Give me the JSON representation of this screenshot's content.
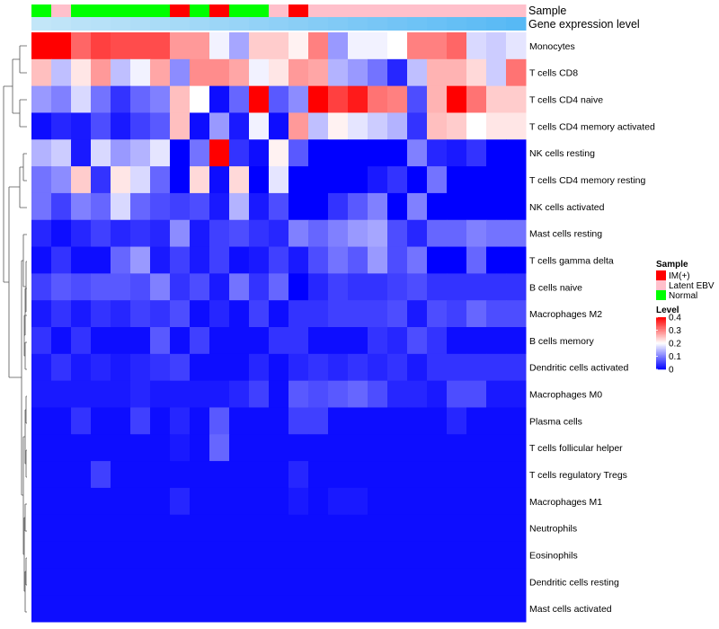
{
  "chart_data": {
    "type": "heatmap",
    "title": "",
    "annotation_labels": [
      "Sample",
      "Gene expression level"
    ],
    "rows": [
      "Monocytes",
      "T cells CD8",
      "T cells CD4 naive",
      "T cells CD4 memory activated",
      "NK cells resting",
      "T cells CD4 memory resting",
      "NK cells activated",
      "Mast cells resting",
      "T cells gamma delta",
      "B cells naive",
      "Macrophages M2",
      "B cells memory",
      "Dendritic cells activated",
      "Macrophages M0",
      "Plasma cells",
      "T cells follicular helper",
      "T cells regulatory  Tregs",
      "Macrophages M1",
      "Neutrophils",
      "Eosinophils",
      "Dendritic cells resting",
      "Mast cells activated"
    ],
    "sample_groups": [
      "Normal",
      "Latent EBV",
      "Normal",
      "Normal",
      "Normal",
      "Normal",
      "Normal",
      "IM(+)",
      "Normal",
      "IM(+)",
      "Normal",
      "Normal",
      "Latent EBV",
      "IM(+)",
      "Latent EBV",
      "Latent EBV",
      "Latent EBV",
      "Latent EBV",
      "Latent EBV",
      "Latent EBV",
      "Latent EBV",
      "Latent EBV",
      "Latent EBV",
      "Latent EBV",
      "Latent EBV"
    ],
    "gene_expression_level": [
      0.05,
      0.08,
      0.12,
      0.15,
      0.18,
      0.22,
      0.26,
      0.3,
      0.34,
      0.38,
      0.42,
      0.46,
      0.5,
      0.54,
      0.58,
      0.62,
      0.66,
      0.7,
      0.74,
      0.78,
      0.82,
      0.86,
      0.9,
      0.94,
      0.98
    ],
    "values": [
      [
        0.4,
        0.4,
        0.32,
        0.35,
        0.34,
        0.34,
        0.34,
        0.28,
        0.28,
        0.19,
        0.13,
        0.24,
        0.24,
        0.21,
        0.3,
        0.12,
        0.19,
        0.19,
        0.2,
        0.3,
        0.3,
        0.32,
        0.17,
        0.16,
        0.18,
        0.19
      ],
      [
        0.25,
        0.15,
        0.22,
        0.28,
        0.15,
        0.19,
        0.27,
        0.11,
        0.29,
        0.29,
        0.27,
        0.19,
        0.22,
        0.28,
        0.27,
        0.14,
        0.12,
        0.09,
        0.03,
        0.15,
        0.26,
        0.26,
        0.23,
        0.16,
        0.31
      ],
      [
        0.12,
        0.1,
        0.17,
        0.09,
        0.04,
        0.08,
        0.1,
        0.25,
        0.2,
        0.01,
        0.08,
        0.4,
        0.07,
        0.11,
        0.4,
        0.35,
        0.38,
        0.31,
        0.3,
        0.06,
        0.26,
        0.4,
        0.31,
        0.24
      ],
      [
        0.01,
        0.03,
        0.02,
        0.06,
        0.02,
        0.05,
        0.07,
        0.25,
        0.01,
        0.12,
        0.02,
        0.19,
        0.01,
        0.28,
        0.15,
        0.21,
        0.18,
        0.16,
        0.14,
        0.04,
        0.25,
        0.24,
        0.2,
        0.22
      ],
      [
        0.14,
        0.16,
        0.02,
        0.17,
        0.12,
        0.14,
        0.18,
        0.0,
        0.09,
        0.4,
        0.04,
        0.01,
        0.21,
        0.07,
        0.0,
        0.0,
        0.0,
        0.0,
        0.0,
        0.1,
        0.03,
        0.02,
        0.04,
        0.0
      ],
      [
        0.09,
        0.11,
        0.24,
        0.04,
        0.22,
        0.17,
        0.08,
        0.0,
        0.23,
        0.01,
        0.23,
        0.0,
        0.18,
        0.0,
        0.0,
        0.0,
        0.0,
        0.02,
        0.04,
        0.0,
        0.09,
        0.0,
        0.0,
        0.0
      ],
      [
        0.09,
        0.05,
        0.1,
        0.08,
        0.17,
        0.08,
        0.06,
        0.05,
        0.06,
        0.02,
        0.14,
        0.02,
        0.06,
        0.0,
        0.0,
        0.04,
        0.07,
        0.1,
        0.0,
        0.1,
        0.0,
        0.0,
        0.0,
        0.0
      ],
      [
        0.03,
        0.01,
        0.03,
        0.05,
        0.03,
        0.04,
        0.03,
        0.11,
        0.02,
        0.05,
        0.06,
        0.04,
        0.03,
        0.1,
        0.08,
        0.1,
        0.12,
        0.13,
        0.06,
        0.03,
        0.08,
        0.08,
        0.1,
        0.09
      ],
      [
        0.01,
        0.04,
        0.01,
        0.01,
        0.08,
        0.12,
        0.02,
        0.05,
        0.02,
        0.05,
        0.01,
        0.02,
        0.05,
        0.02,
        0.06,
        0.09,
        0.07,
        0.12,
        0.06,
        0.09,
        0.0,
        0.0,
        0.08,
        0.0
      ],
      [
        0.05,
        0.07,
        0.06,
        0.07,
        0.07,
        0.06,
        0.1,
        0.04,
        0.06,
        0.02,
        0.09,
        0.04,
        0.08,
        0.0,
        0.03,
        0.05,
        0.04,
        0.04,
        0.05,
        0.06,
        0.04,
        0.04,
        0.04,
        0.04
      ],
      [
        0.02,
        0.04,
        0.02,
        0.04,
        0.03,
        0.05,
        0.04,
        0.06,
        0.01,
        0.03,
        0.01,
        0.05,
        0.01,
        0.04,
        0.04,
        0.05,
        0.05,
        0.05,
        0.06,
        0.02,
        0.06,
        0.05,
        0.08,
        0.06
      ],
      [
        0.04,
        0.01,
        0.04,
        0.01,
        0.01,
        0.01,
        0.07,
        0.01,
        0.05,
        0.01,
        0.01,
        0.01,
        0.04,
        0.04,
        0.01,
        0.01,
        0.01,
        0.04,
        0.03,
        0.06,
        0.04,
        0.01,
        0.01,
        0.01
      ],
      [
        0.02,
        0.04,
        0.02,
        0.03,
        0.02,
        0.03,
        0.04,
        0.05,
        0.01,
        0.01,
        0.01,
        0.03,
        0.01,
        0.03,
        0.04,
        0.03,
        0.04,
        0.03,
        0.04,
        0.02,
        0.04,
        0.04,
        0.04,
        0.04
      ],
      [
        0.02,
        0.02,
        0.02,
        0.02,
        0.02,
        0.03,
        0.02,
        0.02,
        0.02,
        0.02,
        0.03,
        0.05,
        0.01,
        0.07,
        0.06,
        0.07,
        0.08,
        0.06,
        0.03,
        0.03,
        0.02,
        0.06,
        0.06,
        0.02
      ],
      [
        0.01,
        0.01,
        0.04,
        0.01,
        0.01,
        0.05,
        0.01,
        0.03,
        0.01,
        0.07,
        0.01,
        0.01,
        0.01,
        0.05,
        0.05,
        0.01,
        0.01,
        0.01,
        0.01,
        0.01,
        0.01,
        0.03,
        0.01,
        0.01
      ],
      [
        0.01,
        0.01,
        0.01,
        0.01,
        0.01,
        0.01,
        0.01,
        0.02,
        0.01,
        0.08,
        0.01,
        0.01,
        0.01,
        0.01,
        0.01,
        0.01,
        0.01,
        0.01,
        0.01,
        0.01,
        0.01,
        0.01,
        0.01,
        0.01
      ],
      [
        0.01,
        0.01,
        0.01,
        0.05,
        0.01,
        0.01,
        0.01,
        0.01,
        0.01,
        0.01,
        0.01,
        0.01,
        0.01,
        0.03,
        0.01,
        0.01,
        0.01,
        0.01,
        0.01,
        0.01,
        0.01,
        0.01,
        0.01,
        0.01
      ],
      [
        0.01,
        0.01,
        0.01,
        0.01,
        0.01,
        0.01,
        0.01,
        0.03,
        0.01,
        0.01,
        0.01,
        0.01,
        0.01,
        0.02,
        0.01,
        0.02,
        0.02,
        0.01,
        0.01,
        0.01,
        0.01,
        0.01,
        0.01,
        0.01
      ],
      [
        0.01,
        0.01,
        0.01,
        0.01,
        0.01,
        0.01,
        0.01,
        0.01,
        0.01,
        0.01,
        0.01,
        0.01,
        0.01,
        0.01,
        0.01,
        0.01,
        0.01,
        0.01,
        0.01,
        0.01,
        0.01,
        0.01,
        0.01,
        0.01
      ],
      [
        0.01,
        0.01,
        0.01,
        0.01,
        0.01,
        0.01,
        0.01,
        0.01,
        0.01,
        0.01,
        0.01,
        0.01,
        0.01,
        0.01,
        0.01,
        0.01,
        0.01,
        0.01,
        0.01,
        0.01,
        0.01,
        0.01,
        0.01,
        0.01
      ],
      [
        0.01,
        0.01,
        0.01,
        0.01,
        0.01,
        0.01,
        0.01,
        0.01,
        0.01,
        0.01,
        0.01,
        0.01,
        0.01,
        0.01,
        0.01,
        0.01,
        0.01,
        0.01,
        0.01,
        0.01,
        0.01,
        0.01,
        0.01,
        0.01
      ],
      [
        0.01,
        0.01,
        0.01,
        0.01,
        0.01,
        0.01,
        0.01,
        0.01,
        0.01,
        0.01,
        0.01,
        0.01,
        0.01,
        0.01,
        0.01,
        0.01,
        0.01,
        0.01,
        0.01,
        0.01,
        0.01,
        0.01,
        0.01,
        0.01
      ]
    ],
    "color_scale": {
      "min": 0,
      "mid": 0.2,
      "max": 0.4,
      "low": "#0000ff",
      "midcolor": "#ffffff",
      "high": "#ff0000"
    },
    "legend": {
      "sample_title": "Sample",
      "sample_entries": [
        {
          "label": "IM(+)",
          "color": "#ff0000"
        },
        {
          "label": "Latent EBV",
          "color": "#ffc0cb"
        },
        {
          "label": "Normal",
          "color": "#00ff00"
        }
      ],
      "level_title": "Level",
      "level_ticks": [
        "0.4",
        "0.3",
        "0.2",
        "0.1",
        "0"
      ],
      "level_tick_values": [
        0.4,
        0.3,
        0.2,
        0.1,
        0
      ],
      "placement": "right"
    },
    "gene_expression_colors": {
      "low": "#c8e8f8",
      "high": "#55b8f5"
    }
  }
}
